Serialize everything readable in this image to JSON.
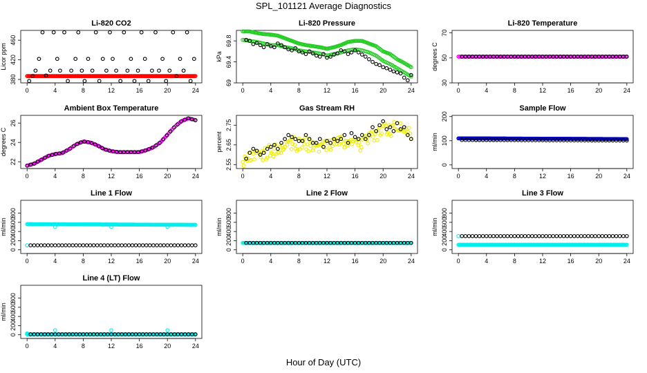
{
  "figure": {
    "title": "SPL_101121  Average Diagnostics",
    "xlabel": "Hour of Day (UTC)"
  },
  "colors": {
    "black": "#000000",
    "red": "#ff0000",
    "green": "#22cc22",
    "magenta": "#ff00ff",
    "yellow": "#eeee00",
    "blue": "#0000cc",
    "cyan": "#00eeee"
  },
  "chart_data": [
    {
      "type": "scatter",
      "title": "Li-820 CO2",
      "ylabel": "Licor ppm",
      "xlim": [
        0,
        24
      ],
      "ylim": [
        373,
        480
      ],
      "xticks": [
        0,
        4,
        8,
        12,
        16,
        20,
        24
      ],
      "yticks": [
        380,
        420,
        460
      ],
      "series": [
        {
          "name": "avg",
          "color": "red",
          "marker": "o",
          "kind": "flat",
          "x": [
            0,
            24
          ],
          "y": [
            387,
            387
          ],
          "density": 200
        },
        {
          "name": "sample",
          "color": "black",
          "marker": "o",
          "kind": "points",
          "x": [
            0.3,
            0.8,
            1.2,
            1.7,
            2.2,
            2.7,
            3.3,
            3.8,
            4.3,
            4.7,
            5.3,
            5.8,
            6.3,
            6.9,
            7.3,
            7.8,
            8.2,
            8.7,
            9.3,
            9.8,
            10.3,
            10.8,
            11.3,
            11.8,
            12.2,
            12.7,
            13.3,
            13.8,
            14.3,
            14.8,
            15.3,
            15.8,
            16.3,
            16.8,
            17.3,
            17.8,
            18.3,
            18.8,
            19.3,
            19.8,
            20.3,
            20.8,
            21.3,
            21.8,
            22.3,
            22.8,
            23.3,
            23.8
          ],
          "y": [
            377,
            387,
            398,
            422,
            476,
            388,
            398,
            476,
            422,
            398,
            476,
            377,
            398,
            422,
            476,
            398,
            377,
            422,
            398,
            476,
            377,
            422,
            398,
            476,
            422,
            398,
            377,
            476,
            398,
            422,
            377,
            398,
            476,
            422,
            377,
            398,
            476,
            398,
            422,
            377,
            398,
            476,
            387,
            422,
            398,
            476,
            377,
            422
          ]
        }
      ]
    },
    {
      "type": "scatter",
      "title": "Li-820 Pressure",
      "ylabel": "kPa",
      "xlim": [
        0,
        24
      ],
      "ylim": [
        69.0,
        70.0
      ],
      "xticks": [
        0,
        4,
        8,
        12,
        16,
        20,
        24
      ],
      "yticks": [
        69.0,
        69.4,
        69.8
      ],
      "series": [
        {
          "name": "avg-upper",
          "color": "green",
          "marker": "o",
          "kind": "curve",
          "x": [
            0,
            1,
            2,
            3,
            4,
            5,
            6,
            7,
            8,
            9,
            10,
            11,
            12,
            13,
            14,
            15,
            16,
            17,
            18,
            19,
            20,
            21,
            22,
            23,
            24
          ],
          "y": [
            69.98,
            69.98,
            69.95,
            69.93,
            69.92,
            69.9,
            69.85,
            69.8,
            69.75,
            69.72,
            69.7,
            69.68,
            69.65,
            69.68,
            69.72,
            69.78,
            69.8,
            69.8,
            69.75,
            69.7,
            69.6,
            69.55,
            69.45,
            69.38,
            69.3
          ],
          "density": 150
        },
        {
          "name": "avg-lower",
          "color": "green",
          "marker": "o",
          "kind": "curve",
          "x": [
            0,
            1,
            2,
            3,
            4,
            5,
            6,
            7,
            8,
            9,
            10,
            11,
            12,
            13,
            14,
            15,
            16,
            17,
            18,
            19,
            20,
            21,
            22,
            23,
            24
          ],
          "y": [
            69.82,
            69.8,
            69.78,
            69.75,
            69.72,
            69.72,
            69.68,
            69.66,
            69.62,
            69.6,
            69.58,
            69.56,
            69.52,
            69.55,
            69.58,
            69.62,
            69.64,
            69.62,
            69.58,
            69.52,
            69.42,
            69.36,
            69.28,
            69.2,
            69.12
          ],
          "density": 110
        },
        {
          "name": "sample",
          "color": "black",
          "marker": "o",
          "kind": "points",
          "x": [
            0.5,
            1.0,
            1.5,
            2.0,
            2.5,
            3.0,
            3.5,
            4.0,
            4.5,
            5.0,
            5.5,
            6.0,
            6.5,
            7.0,
            7.5,
            8.0,
            8.5,
            9.0,
            9.5,
            10.0,
            10.5,
            11.0,
            11.5,
            12.0,
            12.5,
            13.0,
            13.5,
            14.0,
            14.5,
            15.0,
            15.5,
            16.0,
            16.5,
            17.0,
            17.5,
            18.0,
            18.5,
            19.0,
            19.5,
            20.0,
            20.5,
            21.0,
            21.5,
            22.0,
            22.5,
            23.0,
            23.5,
            24.0
          ],
          "y": [
            69.82,
            69.8,
            69.74,
            69.76,
            69.72,
            69.68,
            69.74,
            69.7,
            69.68,
            69.75,
            69.72,
            69.68,
            69.64,
            69.62,
            69.66,
            69.6,
            69.58,
            69.55,
            69.6,
            69.56,
            69.52,
            69.5,
            69.55,
            69.48,
            69.5,
            69.54,
            69.56,
            69.62,
            69.6,
            69.55,
            69.58,
            69.62,
            69.58,
            69.54,
            69.5,
            69.45,
            69.4,
            69.36,
            69.34,
            69.3,
            69.28,
            69.25,
            69.22,
            69.2,
            69.18,
            69.1,
            69.05,
            69.15
          ]
        }
      ]
    },
    {
      "type": "scatter",
      "title": "Li-820 Temperature",
      "ylabel": "degrees C",
      "xlim": [
        0,
        24
      ],
      "ylim": [
        30,
        72
      ],
      "xticks": [
        0,
        4,
        8,
        12,
        16,
        20,
        24
      ],
      "yticks": [
        30,
        50,
        70
      ],
      "series": [
        {
          "name": "avg",
          "color": "magenta",
          "marker": "o",
          "kind": "flat",
          "x": [
            0,
            24
          ],
          "y": [
            51,
            51
          ],
          "density": 160
        },
        {
          "name": "sample",
          "color": "black",
          "marker": "o",
          "kind": "flat",
          "x": [
            0.5,
            24
          ],
          "y": [
            51,
            51
          ],
          "density": 48
        }
      ]
    },
    {
      "type": "scatter",
      "title": "Ambient Box Temperature",
      "ylabel": "degrees C",
      "xlim": [
        0,
        24
      ],
      "ylim": [
        21.3,
        26.8
      ],
      "xticks": [
        0,
        4,
        8,
        12,
        16,
        20,
        24
      ],
      "yticks": [
        22,
        24,
        26
      ],
      "series": [
        {
          "name": "avg",
          "color": "magenta",
          "marker": "o",
          "kind": "curve",
          "x": [
            0,
            1,
            2,
            3,
            4,
            5,
            6,
            7,
            8,
            9,
            10,
            11,
            12,
            13,
            14,
            15,
            16,
            17,
            18,
            19,
            20,
            21,
            22,
            23,
            24
          ],
          "y": [
            21.6,
            21.8,
            22.2,
            22.6,
            22.8,
            22.9,
            23.3,
            23.8,
            24.1,
            24.0,
            23.7,
            23.3,
            23.1,
            23.0,
            23.0,
            23.0,
            23.0,
            23.2,
            23.5,
            24.0,
            24.8,
            25.6,
            26.2,
            26.5,
            26.3
          ],
          "density": 150
        },
        {
          "name": "sample",
          "color": "black",
          "marker": "o",
          "kind": "curve",
          "x": [
            0,
            1,
            2,
            3,
            4,
            5,
            6,
            7,
            8,
            9,
            10,
            11,
            12,
            13,
            14,
            15,
            16,
            17,
            18,
            19,
            20,
            21,
            22,
            23,
            24
          ],
          "y": [
            21.6,
            21.8,
            22.2,
            22.6,
            22.8,
            22.9,
            23.3,
            23.8,
            24.1,
            24.0,
            23.7,
            23.3,
            23.1,
            23.0,
            23.0,
            23.0,
            23.0,
            23.2,
            23.5,
            24.0,
            24.8,
            25.6,
            26.2,
            26.5,
            26.3
          ],
          "density": 48
        }
      ]
    },
    {
      "type": "scatter",
      "title": "Gas Stream RH",
      "ylabel": "percent",
      "xlim": [
        0,
        24
      ],
      "ylim": [
        2.53,
        2.8
      ],
      "xticks": [
        0,
        4,
        8,
        12,
        16,
        20,
        24
      ],
      "yticks": [
        2.55,
        2.65,
        2.75
      ],
      "series": [
        {
          "name": "avg",
          "color": "yellow",
          "marker": "o",
          "kind": "noisy",
          "x": [
            0,
            1,
            2,
            3,
            4,
            5,
            6,
            7,
            8,
            9,
            10,
            11,
            12,
            13,
            14,
            15,
            16,
            17,
            18,
            19,
            20,
            21,
            22,
            23,
            24
          ],
          "y": [
            2.57,
            2.6,
            2.61,
            2.6,
            2.62,
            2.63,
            2.65,
            2.66,
            2.65,
            2.66,
            2.64,
            2.64,
            2.65,
            2.66,
            2.66,
            2.67,
            2.64,
            2.66,
            2.68,
            2.7,
            2.73,
            2.72,
            2.74,
            2.71,
            2.7
          ],
          "spread": 0.035,
          "density": 160
        },
        {
          "name": "sample",
          "color": "black",
          "marker": "o",
          "kind": "points",
          "x": [
            0.5,
            1.0,
            1.5,
            2.0,
            2.5,
            3.0,
            3.5,
            4.0,
            4.5,
            5.0,
            5.5,
            6.0,
            6.5,
            7.0,
            7.5,
            8.0,
            8.5,
            9.0,
            9.5,
            10.0,
            10.5,
            11.0,
            11.5,
            12.0,
            12.5,
            13.0,
            13.5,
            14.0,
            14.5,
            15.0,
            15.5,
            16.0,
            16.5,
            17.0,
            17.5,
            18.0,
            18.5,
            19.0,
            19.5,
            20.0,
            20.5,
            21.0,
            21.5,
            22.0,
            22.5,
            23.0,
            23.5,
            24.0
          ],
          "y": [
            2.58,
            2.61,
            2.63,
            2.62,
            2.6,
            2.61,
            2.63,
            2.64,
            2.65,
            2.63,
            2.66,
            2.68,
            2.7,
            2.69,
            2.68,
            2.67,
            2.67,
            2.7,
            2.68,
            2.66,
            2.66,
            2.68,
            2.64,
            2.67,
            2.66,
            2.68,
            2.67,
            2.68,
            2.7,
            2.66,
            2.71,
            2.69,
            2.68,
            2.7,
            2.68,
            2.7,
            2.74,
            2.72,
            2.75,
            2.77,
            2.73,
            2.74,
            2.72,
            2.76,
            2.73,
            2.74,
            2.7,
            2.68
          ]
        }
      ]
    },
    {
      "type": "scatter",
      "title": "Sample Flow",
      "ylabel": "ml/min",
      "xlim": [
        0,
        24
      ],
      "ylim": [
        -15,
        205
      ],
      "xticks": [
        0,
        4,
        8,
        12,
        16,
        20,
        24
      ],
      "yticks": [
        0,
        100,
        200
      ],
      "series": [
        {
          "name": "avg",
          "color": "blue",
          "marker": "o",
          "kind": "flat",
          "x": [
            0,
            24
          ],
          "y": [
            110,
            107
          ],
          "density": 200
        },
        {
          "name": "sample",
          "color": "black",
          "marker": "o",
          "kind": "flat",
          "x": [
            0.5,
            24
          ],
          "y": [
            103,
            101
          ],
          "density": 48
        }
      ]
    },
    {
      "type": "scatter",
      "title": "Line 1 Flow",
      "ylabel": "ml/min",
      "xlim": [
        0,
        24
      ],
      "ylim": [
        -80,
        1080
      ],
      "xticks": [
        0,
        4,
        8,
        12,
        16,
        20,
        24
      ],
      "yticks": [
        0,
        200,
        400,
        600,
        800
      ],
      "series": [
        {
          "name": "avg",
          "color": "cyan",
          "marker": "o",
          "kind": "flat",
          "x": [
            0,
            24
          ],
          "y": [
            560,
            545
          ],
          "density": 200
        },
        {
          "name": "avg-low",
          "color": "cyan",
          "marker": "o",
          "kind": "points",
          "x": [
            0,
            4,
            12,
            20
          ],
          "y": [
            100,
            500,
            500,
            500
          ]
        },
        {
          "name": "sample",
          "color": "black",
          "marker": "o",
          "kind": "flat",
          "x": [
            0.5,
            24
          ],
          "y": [
            100,
            100
          ],
          "density": 48
        }
      ]
    },
    {
      "type": "scatter",
      "title": "Line 2 Flow",
      "ylabel": "ml/min",
      "xlim": [
        0,
        24
      ],
      "ylim": [
        -80,
        1080
      ],
      "xticks": [
        0,
        4,
        8,
        12,
        16,
        20,
        24
      ],
      "yticks": [
        0,
        200,
        400,
        600,
        800
      ],
      "series": [
        {
          "name": "avg",
          "color": "cyan",
          "marker": "o",
          "kind": "flat",
          "x": [
            0,
            24
          ],
          "y": [
            150,
            150
          ],
          "density": 200
        },
        {
          "name": "sample",
          "color": "black",
          "marker": "o",
          "kind": "flat",
          "x": [
            0.5,
            24
          ],
          "y": [
            150,
            150
          ],
          "density": 48
        }
      ]
    },
    {
      "type": "scatter",
      "title": "Line 3 Flow",
      "ylabel": "ml/min",
      "xlim": [
        0,
        24
      ],
      "ylim": [
        -80,
        1080
      ],
      "xticks": [
        0,
        4,
        8,
        12,
        16,
        20,
        24
      ],
      "yticks": [
        0,
        200,
        400,
        600,
        800
      ],
      "series": [
        {
          "name": "avg",
          "color": "cyan",
          "marker": "o",
          "kind": "flat",
          "x": [
            0,
            24
          ],
          "y": [
            110,
            110
          ],
          "density": 200
        },
        {
          "name": "avg-high",
          "color": "cyan",
          "marker": "o",
          "kind": "points",
          "x": [
            0
          ],
          "y": [
            300
          ]
        },
        {
          "name": "sample",
          "color": "black",
          "marker": "o",
          "kind": "flat",
          "x": [
            0.5,
            24
          ],
          "y": [
            300,
            300
          ],
          "density": 48
        }
      ]
    },
    {
      "type": "scatter",
      "title": "Line 4 (LT) Flow",
      "ylabel": "ml/min",
      "xlim": [
        0,
        24
      ],
      "ylim": [
        -80,
        1080
      ],
      "xticks": [
        0,
        4,
        8,
        12,
        16,
        20,
        24
      ],
      "yticks": [
        0,
        200,
        400,
        600,
        800
      ],
      "series": [
        {
          "name": "avg",
          "color": "cyan",
          "marker": "o",
          "kind": "flat",
          "x": [
            0,
            24
          ],
          "y": [
            10,
            10
          ],
          "density": 200
        },
        {
          "name": "avg-spike",
          "color": "cyan",
          "marker": "o",
          "kind": "points",
          "x": [
            0,
            4,
            12,
            20
          ],
          "y": [
            30,
            100,
            100,
            100
          ]
        },
        {
          "name": "sample",
          "color": "black",
          "marker": "o",
          "kind": "flat",
          "x": [
            0.5,
            24
          ],
          "y": [
            10,
            10
          ],
          "density": 48
        }
      ]
    }
  ]
}
